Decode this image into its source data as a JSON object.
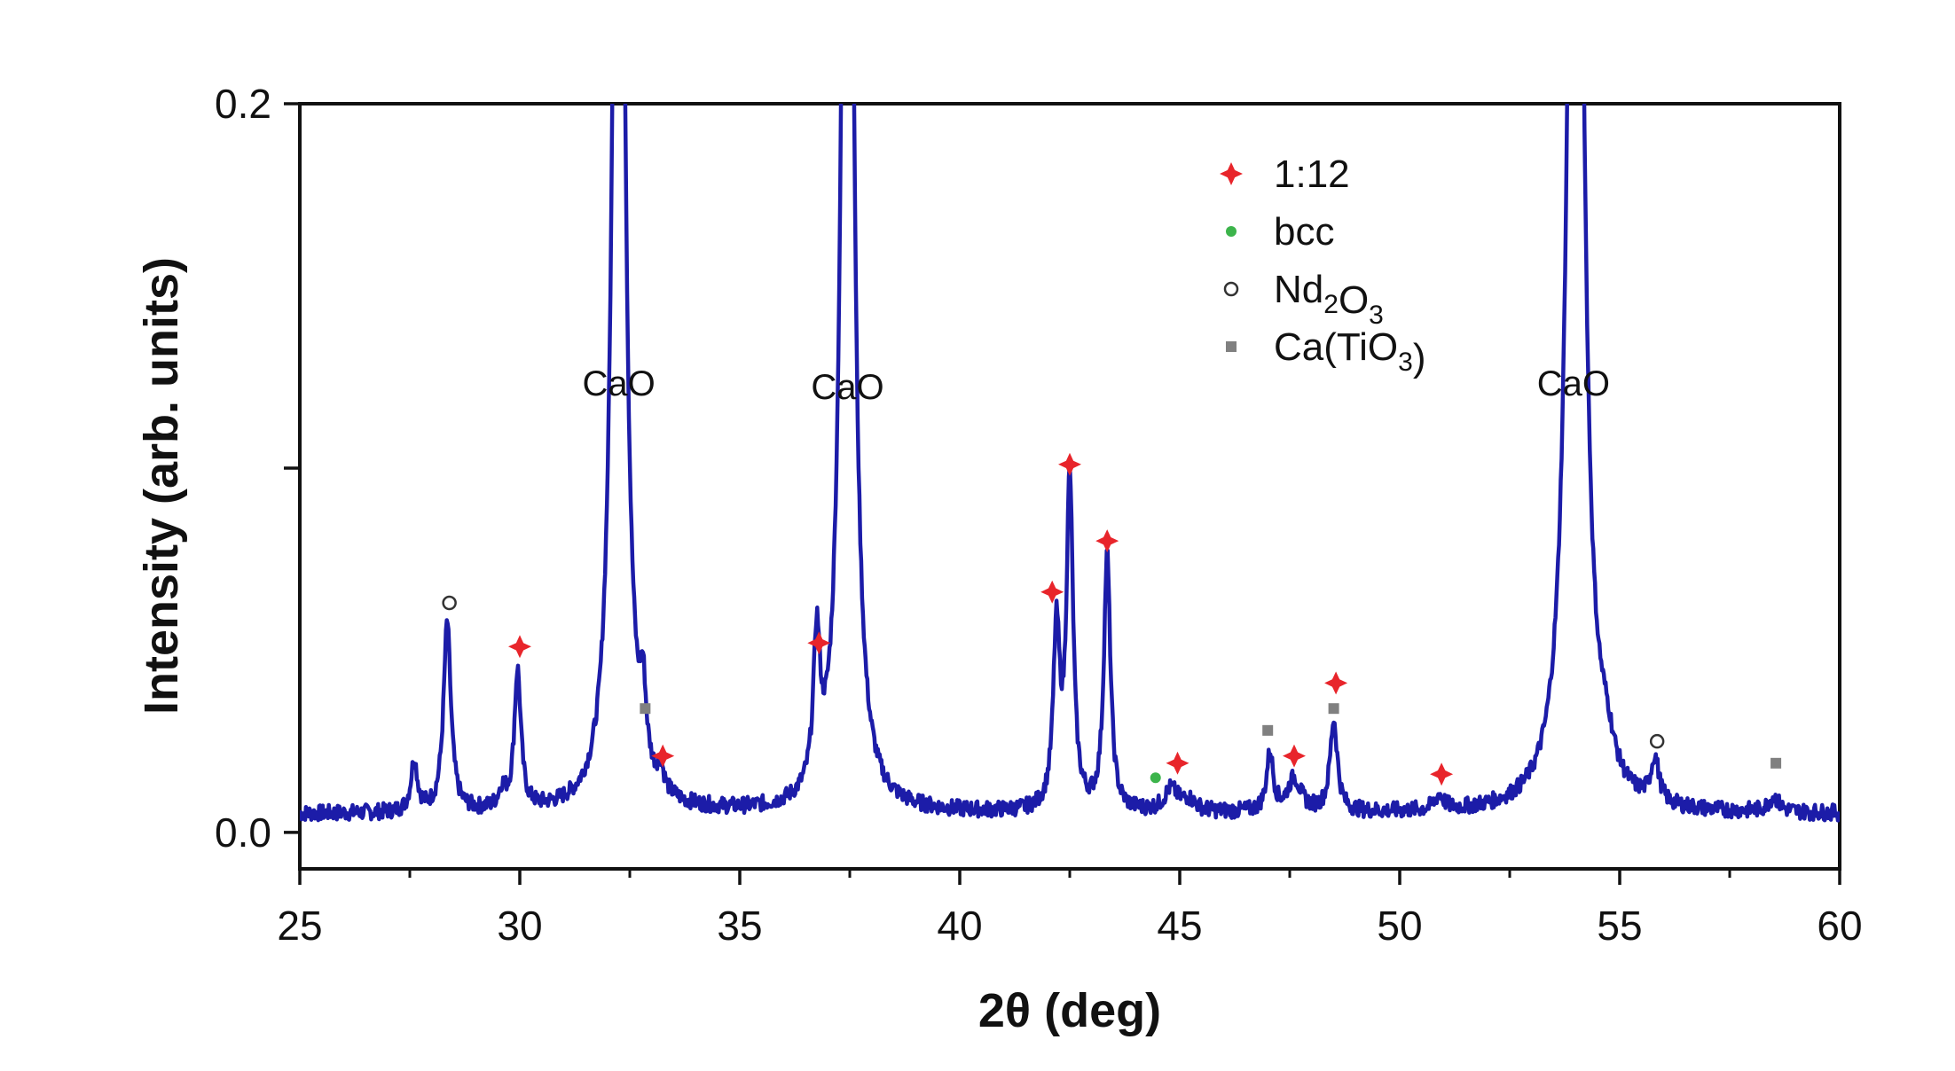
{
  "chart_data": {
    "type": "line",
    "xlabel": "2θ (deg)",
    "ylabel": "Intensity (arb. units)",
    "xlim": [
      25,
      60
    ],
    "ylim": [
      -0.01,
      0.2
    ],
    "xticks": [
      25,
      30,
      35,
      40,
      45,
      50,
      55,
      60
    ],
    "yticks": [
      0.0,
      0.1,
      0.2
    ],
    "ytick_labels": [
      "0.0",
      "",
      "0.2"
    ],
    "grid": false,
    "legend_position": "top-center",
    "series_color": "#1c1ca8",
    "baseline": 0.005,
    "noise": 0.0022,
    "peaks": [
      {
        "x": 27.6,
        "h": 0.014,
        "w": 0.09
      },
      {
        "x": 28.35,
        "h": 0.052,
        "w": 0.1
      },
      {
        "x": 29.6,
        "h": 0.005,
        "w": 0.1
      },
      {
        "x": 29.95,
        "h": 0.038,
        "w": 0.09
      },
      {
        "x": 32.25,
        "h": 0.45,
        "w": 0.13
      },
      {
        "x": 32.8,
        "h": 0.02,
        "w": 0.08
      },
      {
        "x": 33.2,
        "h": 0.006,
        "w": 0.08
      },
      {
        "x": 36.75,
        "h": 0.04,
        "w": 0.09
      },
      {
        "x": 37.45,
        "h": 0.45,
        "w": 0.13
      },
      {
        "x": 42.2,
        "h": 0.048,
        "w": 0.09
      },
      {
        "x": 42.5,
        "h": 0.09,
        "w": 0.09
      },
      {
        "x": 43.35,
        "h": 0.07,
        "w": 0.09
      },
      {
        "x": 44.8,
        "h": 0.006,
        "w": 0.18
      },
      {
        "x": 45.2,
        "h": 0.003,
        "w": 0.2
      },
      {
        "x": 47.05,
        "h": 0.016,
        "w": 0.09
      },
      {
        "x": 47.6,
        "h": 0.009,
        "w": 0.18
      },
      {
        "x": 48.5,
        "h": 0.025,
        "w": 0.1
      },
      {
        "x": 50.9,
        "h": 0.004,
        "w": 0.12
      },
      {
        "x": 54.0,
        "h": 0.45,
        "w": 0.17
      },
      {
        "x": 54.7,
        "h": 0.008,
        "w": 0.2
      },
      {
        "x": 55.8,
        "h": 0.012,
        "w": 0.11
      },
      {
        "x": 58.5,
        "h": 0.004,
        "w": 0.15
      }
    ],
    "peak_labels": [
      {
        "x": 32.25,
        "y": 0.12,
        "text": "CaO"
      },
      {
        "x": 37.45,
        "y": 0.119,
        "text": "CaO"
      },
      {
        "x": 53.95,
        "y": 0.12,
        "text": "CaO"
      }
    ],
    "markers": [
      {
        "phase": "Nd2O3",
        "x": 28.4,
        "y": 0.063
      },
      {
        "phase": "1:12",
        "x": 30.0,
        "y": 0.051
      },
      {
        "phase": "Ca(TiO3)",
        "x": 32.85,
        "y": 0.034
      },
      {
        "phase": "1:12",
        "x": 33.25,
        "y": 0.021
      },
      {
        "phase": "1:12",
        "x": 36.8,
        "y": 0.052
      },
      {
        "phase": "1:12",
        "x": 42.1,
        "y": 0.066
      },
      {
        "phase": "1:12",
        "x": 42.5,
        "y": 0.101
      },
      {
        "phase": "1:12",
        "x": 43.35,
        "y": 0.08
      },
      {
        "phase": "bcc",
        "x": 44.45,
        "y": 0.015
      },
      {
        "phase": "1:12",
        "x": 44.95,
        "y": 0.019
      },
      {
        "phase": "Ca(TiO3)",
        "x": 47.0,
        "y": 0.028
      },
      {
        "phase": "1:12",
        "x": 47.6,
        "y": 0.021
      },
      {
        "phase": "1:12",
        "x": 48.55,
        "y": 0.041
      },
      {
        "phase": "Ca(TiO3)",
        "x": 48.5,
        "y": 0.034
      },
      {
        "phase": "1:12",
        "x": 50.95,
        "y": 0.016
      },
      {
        "phase": "Nd2O3",
        "x": 55.85,
        "y": 0.025
      },
      {
        "phase": "Ca(TiO3)",
        "x": 58.55,
        "y": 0.019
      }
    ],
    "legend": [
      {
        "phase": "1:12",
        "marker": "red-star",
        "color": "#e8252b",
        "label": "1:12"
      },
      {
        "phase": "bcc",
        "marker": "green-dot",
        "color": "#3cb44b",
        "label": "bcc"
      },
      {
        "phase": "Nd2O3",
        "marker": "open-circle",
        "color": "#333333",
        "label": "Nd",
        "sub1": "2",
        "mid": "O",
        "sub2": "3"
      },
      {
        "phase": "Ca(TiO3)",
        "marker": "gray-square",
        "color": "#808080",
        "label": "Ca(TiO",
        "sub1": "3",
        "end": ")"
      }
    ]
  }
}
